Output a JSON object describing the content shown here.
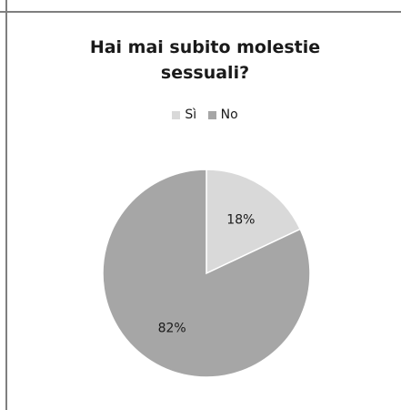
{
  "chart_data": {
    "type": "pie",
    "title_lines": [
      "Hai mai subito molestie",
      "sessuali?"
    ],
    "categories": [
      "Sì",
      "No"
    ],
    "values": [
      18,
      82
    ],
    "labels": [
      "18%",
      "82%"
    ],
    "colors": [
      "#d9d9d9",
      "#a6a6a6"
    ],
    "legend_position": "top"
  }
}
